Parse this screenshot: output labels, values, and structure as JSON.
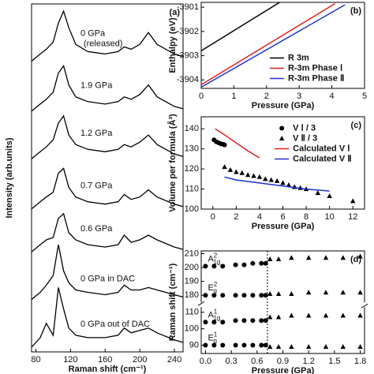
{
  "chart_data": [
    {
      "type": "line",
      "panel_label": "(a)",
      "xlabel": "Raman shift (cm⁻¹)",
      "ylabel": "Intensity (arb.units)",
      "xlim": [
        75,
        250
      ],
      "xticks": [
        80,
        120,
        160,
        200,
        240
      ],
      "ylim": [
        0,
        7.3
      ],
      "x": [
        75,
        85,
        92,
        100,
        106,
        112,
        118,
        126,
        140,
        160,
        175,
        182,
        190,
        200,
        210,
        220,
        240,
        250
      ],
      "series": [
        {
          "name": "0 GPa",
          "note": "(released)",
          "color": "#000000",
          "values": [
            6.1,
            6.25,
            6.35,
            6.5,
            6.9,
            7.15,
            6.8,
            6.45,
            6.3,
            6.25,
            6.3,
            6.4,
            6.35,
            6.45,
            6.7,
            6.45,
            6.25,
            6.2
          ]
        },
        {
          "name": "1.9 GPa",
          "color": "#000000",
          "values": [
            5.05,
            5.2,
            5.3,
            5.45,
            5.85,
            6.0,
            5.6,
            5.35,
            5.25,
            5.2,
            5.25,
            5.35,
            5.3,
            5.4,
            5.6,
            5.35,
            5.15,
            5.1
          ]
        },
        {
          "name": "1.2 GPa",
          "color": "#000000",
          "values": [
            4.05,
            4.2,
            4.3,
            4.45,
            4.8,
            4.95,
            4.55,
            4.35,
            4.25,
            4.2,
            4.25,
            4.35,
            4.3,
            4.4,
            4.55,
            4.35,
            4.15,
            4.1
          ]
        },
        {
          "name": "0.7 GPa",
          "color": "#000000",
          "values": [
            3.0,
            3.15,
            3.25,
            3.35,
            3.75,
            3.85,
            3.45,
            3.25,
            3.15,
            3.1,
            3.15,
            3.3,
            3.2,
            3.25,
            3.4,
            3.25,
            3.1,
            3.05
          ]
        },
        {
          "name": "0.6 GPa",
          "color": "#000000",
          "values": [
            2.1,
            2.25,
            2.35,
            2.4,
            2.8,
            2.9,
            2.5,
            2.35,
            2.25,
            2.2,
            2.25,
            2.45,
            2.3,
            2.35,
            2.45,
            2.35,
            2.2,
            2.15
          ]
        },
        {
          "name": "0 GPa in DAC",
          "color": "#000000",
          "values": [
            1.1,
            1.25,
            1.4,
            1.6,
            2.25,
            1.7,
            1.45,
            1.3,
            1.25,
            1.2,
            1.25,
            1.4,
            1.3,
            1.3,
            1.35,
            1.3,
            1.2,
            1.15
          ]
        },
        {
          "name": "0 GPa out of DAC",
          "color": "#000000",
          "values": [
            0.1,
            0.3,
            0.6,
            0.35,
            1.35,
            0.9,
            0.5,
            0.35,
            0.3,
            0.3,
            0.35,
            0.5,
            0.4,
            0.45,
            0.5,
            0.4,
            0.25,
            0.2
          ]
        }
      ]
    },
    {
      "type": "line",
      "panel_label": "(b)",
      "xlabel": "Pressure (GPa)",
      "ylabel": "Enthalpy (eV)",
      "xlim": [
        0,
        5
      ],
      "xticks": [
        0,
        1,
        2,
        3,
        4,
        5
      ],
      "ylim": [
        -3904.35,
        -3900.8
      ],
      "yticks": [
        -3901,
        -3902,
        -3903,
        -3904
      ],
      "legend": "lower right",
      "series": [
        {
          "name": "R 3m",
          "color": "#000000",
          "x": [
            0,
            2.4
          ],
          "values": [
            -3902.8,
            -3900.8
          ]
        },
        {
          "name": "R-3m Phase Ⅰ",
          "color": "#e02020",
          "x": [
            0,
            4.1
          ],
          "values": [
            -3904.2,
            -3900.85
          ]
        },
        {
          "name": "R-3m Phase Ⅱ",
          "color": "#2030d0",
          "x": [
            0,
            4.4
          ],
          "values": [
            -3904.3,
            -3900.9
          ]
        }
      ]
    },
    {
      "type": "scatter",
      "panel_label": "(c)",
      "xlabel": "Pressure (GPa)",
      "ylabel": "Volume per formula (Å³)",
      "xlim": [
        -1,
        13
      ],
      "xticks": [
        0,
        2,
        4,
        6,
        8,
        10,
        12
      ],
      "ylim": [
        100,
        146
      ],
      "yticks": [
        100,
        110,
        120,
        130,
        140
      ],
      "legend": "upper right",
      "series": [
        {
          "name": "V Ⅰ / 3",
          "marker": "circle",
          "color": "#000000",
          "x": [
            0.1,
            0.3,
            0.5,
            0.7,
            0.9,
            1.0
          ],
          "values": [
            134.5,
            133.5,
            133,
            132.5,
            132.3,
            132
          ]
        },
        {
          "name": "V Ⅱ / 3",
          "marker": "triangle",
          "color": "#000000",
          "x": [
            1,
            1.5,
            2,
            2.5,
            3,
            3.5,
            4,
            4.5,
            5,
            5.5,
            6,
            6.5,
            7,
            7.5,
            8,
            9,
            10,
            12
          ],
          "values": [
            121,
            119.5,
            118.5,
            118,
            117,
            116.5,
            116,
            115,
            114.5,
            114,
            113,
            112,
            111,
            110.5,
            110,
            108,
            106.5,
            104
          ]
        },
        {
          "name": "Calculated V Ⅰ",
          "color": "#e02020",
          "x": [
            0.2,
            1,
            2,
            3,
            4
          ],
          "values": [
            140,
            137,
            133,
            129,
            125.5
          ]
        },
        {
          "name": "Calculated V Ⅱ",
          "color": "#2030d0",
          "x": [
            1,
            2,
            4,
            6,
            8,
            10
          ],
          "values": [
            116,
            114.5,
            113,
            111.5,
            110,
            109
          ]
        }
      ]
    },
    {
      "type": "scatter",
      "panel_label": "(d)",
      "xlabel": "Pressure (GPa)",
      "ylabel": "Raman shift (cm⁻¹)",
      "xlim": [
        -0.05,
        1.85
      ],
      "xticks": [
        {
          "value": 0,
          "label": "0.0"
        },
        0.3,
        0.6,
        0.9,
        1.2,
        1.5,
        1.8
      ],
      "ylim": [
        85,
        212
      ],
      "ybreak": [
        113,
        175
      ],
      "yticks": [
        90,
        100,
        110,
        180,
        190,
        200,
        210
      ],
      "transition_x": 0.72,
      "series": [
        {
          "marker": "circle",
          "color": "#000000",
          "tag": {
            "base": "E",
            "sub": "g",
            "sup": "1"
          },
          "x": [
            0,
            0.1,
            0.2,
            0.35,
            0.45,
            0.55,
            0.65,
            0.7
          ],
          "values": [
            90,
            90,
            90,
            90,
            90,
            90,
            90,
            90
          ]
        },
        {
          "marker": "circle",
          "color": "#000000",
          "tag": {
            "base": "A",
            "sub": "1g",
            "sup": "1"
          },
          "x": [
            0,
            0.1,
            0.2,
            0.35,
            0.45,
            0.55,
            0.65,
            0.7
          ],
          "values": [
            104,
            104,
            104,
            105,
            105,
            105,
            105,
            105
          ]
        },
        {
          "marker": "circle",
          "color": "#000000",
          "tag": {
            "base": "E",
            "sub": "g",
            "sup": "2"
          },
          "x": [
            0,
            0.1,
            0.2,
            0.35,
            0.45,
            0.55,
            0.65,
            0.7
          ],
          "values": [
            180,
            180,
            180,
            180,
            180,
            180,
            180,
            180
          ]
        },
        {
          "marker": "circle",
          "color": "#000000",
          "tag": {
            "base": "A",
            "sub": "1g",
            "sup": "2"
          },
          "x": [
            0,
            0.1,
            0.2,
            0.35,
            0.45,
            0.55,
            0.65,
            0.7
          ],
          "values": [
            201,
            201,
            201,
            202,
            202,
            203,
            203,
            203
          ]
        },
        {
          "marker": "triangle",
          "color": "#000000",
          "x": [
            0.75,
            0.85,
            1.0,
            1.2,
            1.4,
            1.6,
            1.8
          ],
          "values": [
            89,
            89,
            89,
            89,
            89,
            89,
            89
          ]
        },
        {
          "marker": "triangle",
          "color": "#000000",
          "x": [
            0.75,
            0.85,
            1.0,
            1.2,
            1.4,
            1.6,
            1.8
          ],
          "values": [
            107,
            107,
            108,
            108,
            108,
            108,
            108
          ]
        },
        {
          "marker": "triangle",
          "color": "#000000",
          "x": [
            0.75,
            0.85,
            1.0,
            1.2,
            1.4,
            1.6,
            1.8
          ],
          "values": [
            181,
            181,
            181,
            182,
            182,
            182,
            182
          ]
        },
        {
          "marker": "triangle",
          "color": "#000000",
          "x": [
            0.75,
            0.85,
            1.0,
            1.2,
            1.4,
            1.6,
            1.8
          ],
          "values": [
            206,
            206,
            207,
            207,
            207,
            207,
            208
          ]
        }
      ]
    }
  ]
}
